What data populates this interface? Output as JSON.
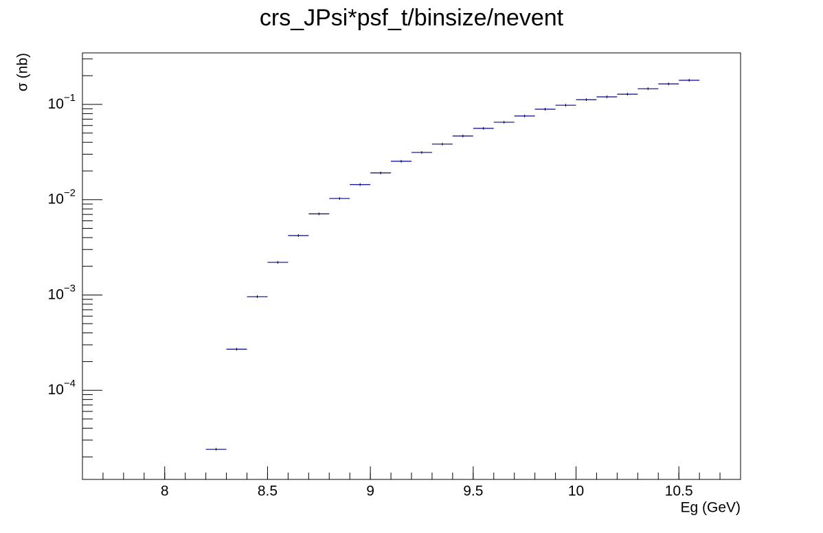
{
  "chart_data": {
    "type": "histogram",
    "title": "crs_JPsi*psf_t/binsize/nevent",
    "x_label": "Eg (GeV)",
    "y_label": "σ (nb)",
    "log_y": true,
    "color": "#00008b",
    "bins": [
      8.2,
      8.3,
      8.4,
      8.5,
      8.6,
      8.7,
      8.8,
      8.9,
      9.0,
      9.1,
      9.2,
      9.3,
      9.4,
      9.5,
      9.6,
      9.7,
      9.8,
      9.9,
      10.0,
      10.1,
      10.2,
      10.3,
      10.4,
      10.5,
      10.6
    ],
    "values": [
      2.4e-05,
      0.00027,
      0.00096,
      0.0022,
      0.0042,
      0.0071,
      0.0103,
      0.0144,
      0.0191,
      0.0253,
      0.0313,
      0.0383,
      0.0466,
      0.056,
      0.065,
      0.0755,
      0.089,
      0.098,
      0.112,
      0.12,
      0.128,
      0.146,
      0.164,
      0.179
    ],
    "xlim": [
      7.6,
      10.8
    ],
    "xticks": [
      8,
      8.5,
      9,
      9.5,
      10,
      10.5
    ],
    "ylim": [
      1.16e-05,
      0.347
    ],
    "yticks": [
      {
        "value": 0.0001,
        "label": "10",
        "exponent": "−4"
      },
      {
        "value": 0.001,
        "label": "10",
        "exponent": "−3"
      },
      {
        "value": 0.01,
        "label": "10",
        "exponent": "−2"
      },
      {
        "value": 0.1,
        "label": "10",
        "exponent": "−1"
      }
    ]
  }
}
